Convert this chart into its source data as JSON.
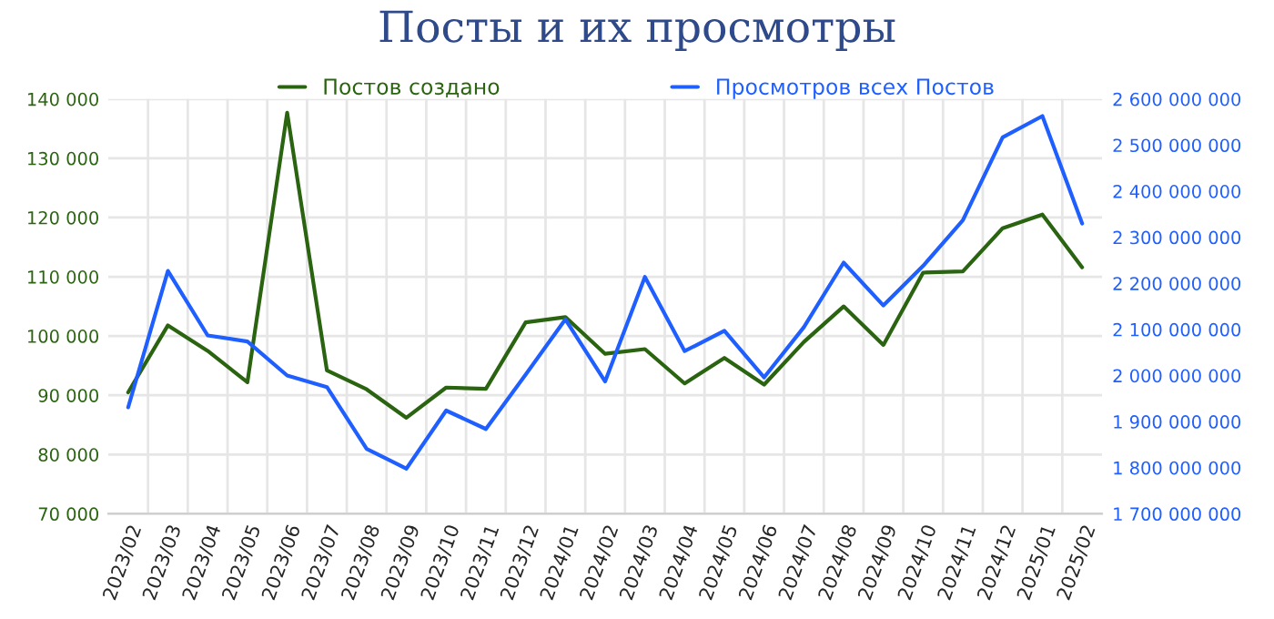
{
  "chart_data": {
    "type": "line",
    "title": "Посты и их просмотры",
    "categories": [
      "2023/02",
      "2023/03",
      "2023/04",
      "2023/05",
      "2023/06",
      "2023/07",
      "2023/08",
      "2023/09",
      "2023/10",
      "2023/11",
      "2023/12",
      "2024/01",
      "2024/02",
      "2024/03",
      "2024/04",
      "2024/05",
      "2024/06",
      "2024/07",
      "2024/08",
      "2024/09",
      "2024/10",
      "2024/11",
      "2024/12",
      "2025/01",
      "2025/02"
    ],
    "series": [
      {
        "name": "Постов создано",
        "color": "#2a6410",
        "values": [
          90500,
          101800,
          97500,
          92200,
          137700,
          94200,
          91000,
          86200,
          91300,
          91100,
          102300,
          103200,
          97000,
          97800,
          92000,
          96300,
          91800,
          99000,
          105000,
          98500,
          110700,
          110900,
          118200,
          120500,
          111600
        ]
      },
      {
        "name": "Просмотров всех Постов",
        "color": "#1f5fff",
        "axis": "y2",
        "values": [
          1931000000,
          2227000000,
          2087000000,
          2074000000,
          2000000000,
          1975000000,
          1841000000,
          1798000000,
          1924000000,
          1884000000,
          2002000000,
          2122000000,
          1987000000,
          2214000000,
          2053000000,
          2097000000,
          1996000000,
          2105000000,
          2245000000,
          2152000000,
          2238000000,
          2337000000,
          2517000000,
          2563000000,
          2330000000
        ]
      }
    ],
    "ylim": [
      70000,
      140000
    ],
    "yticks": [
      {
        "value": 70000,
        "label": "70 000"
      },
      {
        "value": 80000,
        "label": "80 000"
      },
      {
        "value": 90000,
        "label": "90 000"
      },
      {
        "value": 100000,
        "label": "100 000"
      },
      {
        "value": 110000,
        "label": "110 000"
      },
      {
        "value": 120000,
        "label": "120 000"
      },
      {
        "value": 130000,
        "label": "130 000"
      },
      {
        "value": 140000,
        "label": "140 000"
      }
    ],
    "y2lim": [
      1700000000,
      2600000000
    ],
    "y2ticks": [
      {
        "value": 1700000000,
        "label": "1 700 000 000"
      },
      {
        "value": 1800000000,
        "label": "1 800 000 000"
      },
      {
        "value": 1900000000,
        "label": "1 900 000 000"
      },
      {
        "value": 2000000000,
        "label": "2 000 000 000"
      },
      {
        "value": 2100000000,
        "label": "2 100 000 000"
      },
      {
        "value": 2200000000,
        "label": "2 200 000 000"
      },
      {
        "value": 2300000000,
        "label": "2 300 000 000"
      },
      {
        "value": 2400000000,
        "label": "2 400 000 000"
      },
      {
        "value": 2500000000,
        "label": "2 500 000 000"
      },
      {
        "value": 2600000000,
        "label": "2 600 000 000"
      }
    ],
    "grid": true,
    "legend": "top",
    "marker": "none",
    "line_style": "solid"
  }
}
